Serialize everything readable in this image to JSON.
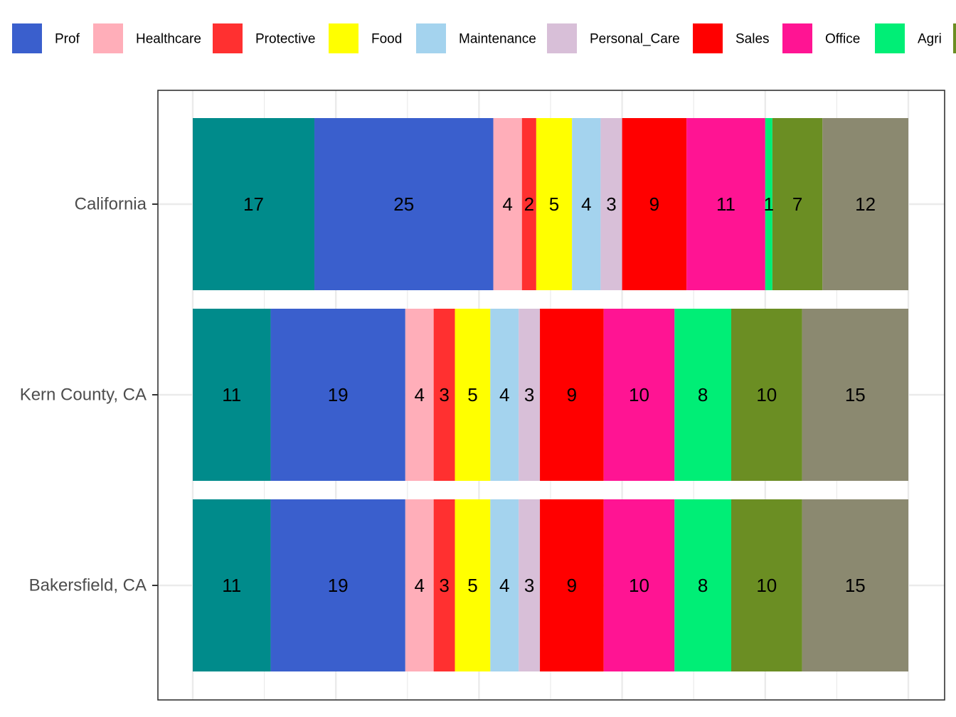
{
  "chart_data": {
    "type": "bar",
    "orientation": "horizontal",
    "stacked": true,
    "title": "",
    "xlabel": "",
    "ylabel": "",
    "xlim": [
      0,
      100
    ],
    "grid": true,
    "legend_position": "top",
    "categories": [
      "California",
      "Kern County, CA",
      "Bakersfield, CA"
    ],
    "series": [
      {
        "key": "teal",
        "name": "",
        "color": "#008B8B",
        "values": [
          17,
          11,
          11
        ]
      },
      {
        "key": "prof",
        "name": "Prof",
        "color": "#3A5FCD",
        "values": [
          25,
          19,
          19
        ]
      },
      {
        "key": "healthcare",
        "name": "Healthcare",
        "color": "#FFAEB9",
        "values": [
          4,
          4,
          4
        ]
      },
      {
        "key": "protective",
        "name": "Protective",
        "color": "#FF3030",
        "values": [
          2,
          3,
          3
        ]
      },
      {
        "key": "food",
        "name": "Food",
        "color": "#FFFF00",
        "values": [
          5,
          5,
          5
        ]
      },
      {
        "key": "maintenance",
        "name": "Maintenance",
        "color": "#A4D3EE",
        "values": [
          4,
          4,
          4
        ]
      },
      {
        "key": "personal-care",
        "name": "Personal_Care",
        "color": "#D8BFD8",
        "values": [
          3,
          3,
          3
        ]
      },
      {
        "key": "sales",
        "name": "Sales",
        "color": "#FF0000",
        "values": [
          9,
          9,
          9
        ]
      },
      {
        "key": "office",
        "name": "Office",
        "color": "#FF1493",
        "values": [
          11,
          10,
          10
        ]
      },
      {
        "key": "agri",
        "name": "Agri",
        "color": "#00EE76",
        "values": [
          1,
          8,
          8
        ]
      },
      {
        "key": "olive",
        "name": "",
        "color": "#6B8E23",
        "values": [
          7,
          10,
          10
        ]
      },
      {
        "key": "gray",
        "name": "",
        "color": "#8B8970",
        "values": [
          12,
          15,
          15
        ]
      }
    ],
    "value_labels": [
      [
        "17",
        "25",
        "4",
        "2",
        "5",
        "4",
        "3",
        "9",
        "11",
        "1",
        "7",
        "12"
      ],
      [
        "11",
        "19",
        "4",
        "3",
        "5",
        "4",
        "3",
        "9",
        "10",
        "8",
        "10",
        "15"
      ],
      [
        "11",
        "19",
        "4",
        "3",
        "5",
        "4",
        "3",
        "9",
        "10",
        "8",
        "10",
        "15"
      ]
    ]
  }
}
